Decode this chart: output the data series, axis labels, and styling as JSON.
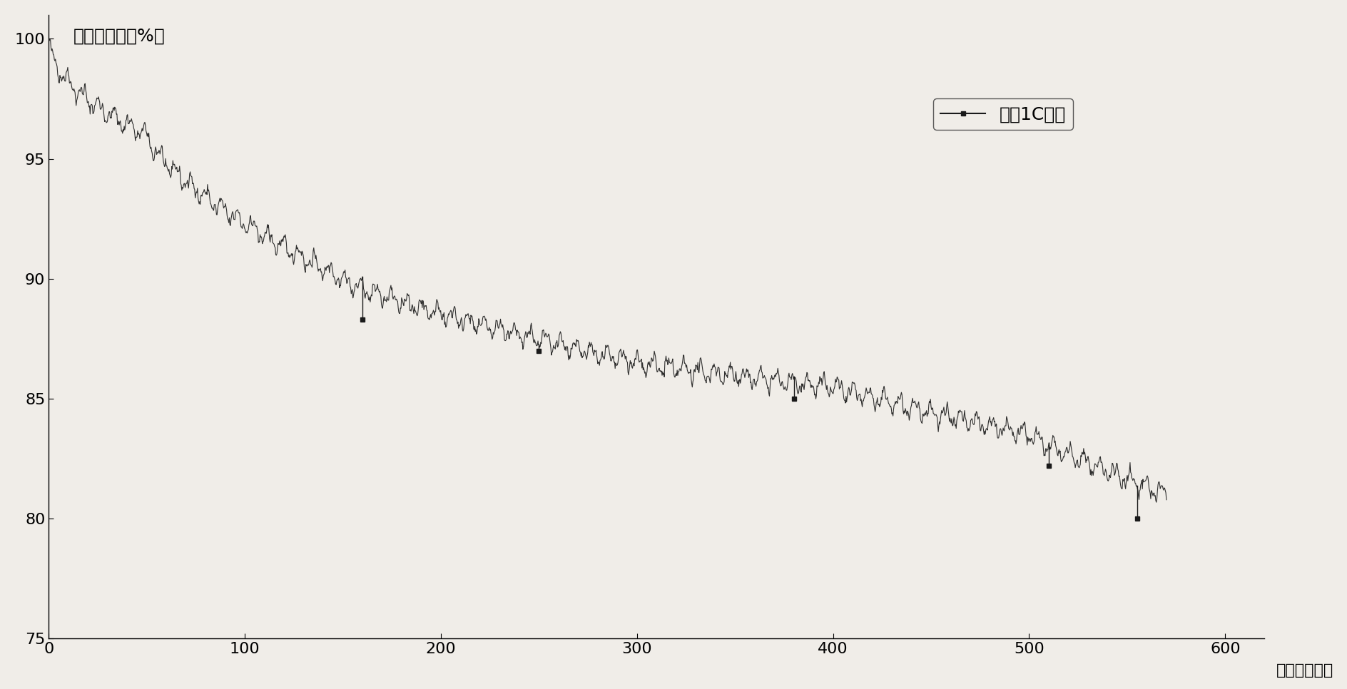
{
  "ylabel": "容量保持率（%）",
  "xlabel": "（循环周数）",
  "legend_label": "常温1C循环",
  "xlim": [
    0,
    620
  ],
  "ylim": [
    75,
    101
  ],
  "yticks": [
    75,
    80,
    85,
    90,
    95,
    100
  ],
  "xticks": [
    0,
    100,
    200,
    300,
    400,
    500,
    600
  ],
  "bg_color": "#f0ede8",
  "line_color": "#1a1a1a",
  "figsize": [
    18.88,
    9.66
  ],
  "dpi": 100
}
